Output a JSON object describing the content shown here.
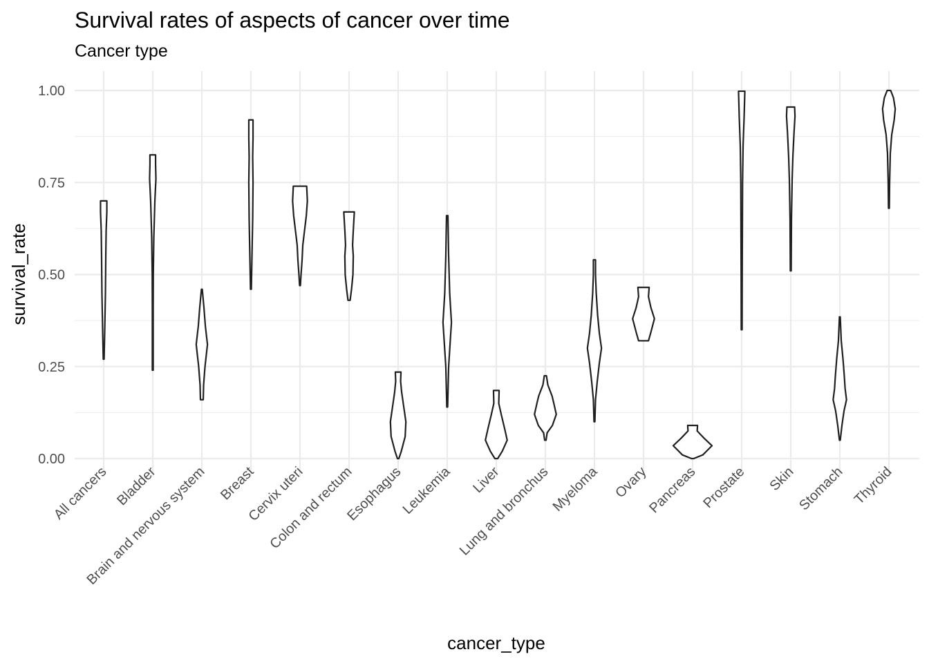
{
  "chart_data": {
    "type": "violin",
    "title": "Survival rates of aspects of cancer over time",
    "subtitle": "Cancer type",
    "xlabel": "cancer_type",
    "ylabel": "survival_rate",
    "ylim": [
      0,
      1
    ],
    "y_ticks": [
      "0.00",
      "0.25",
      "0.50",
      "0.75",
      "1.00"
    ],
    "y_tick_values": [
      0,
      0.25,
      0.5,
      0.75,
      1.0
    ],
    "grid": true,
    "categories": [
      "All cancers",
      "Bladder",
      "Brain and nervous system",
      "Breast",
      "Cervix uteri",
      "Colon and rectum",
      "Esophagus",
      "Leukemia",
      "Liver",
      "Lung and bronchus",
      "Myeloma",
      "Ovary",
      "Pancreas",
      "Prostate",
      "Skin",
      "Stomach",
      "Thyroid"
    ],
    "series": [
      {
        "category": "All cancers",
        "min": 0.27,
        "max": 0.7,
        "density": [
          [
            0.27,
            0.01
          ],
          [
            0.35,
            0.03
          ],
          [
            0.45,
            0.05
          ],
          [
            0.55,
            0.06
          ],
          [
            0.62,
            0.07
          ],
          [
            0.67,
            0.09
          ],
          [
            0.7,
            0.09
          ]
        ]
      },
      {
        "category": "Bladder",
        "min": 0.24,
        "max": 0.825,
        "density": [
          [
            0.24,
            0.01
          ],
          [
            0.4,
            0.01
          ],
          [
            0.5,
            0.015
          ],
          [
            0.6,
            0.03
          ],
          [
            0.7,
            0.06
          ],
          [
            0.76,
            0.09
          ],
          [
            0.8,
            0.08
          ],
          [
            0.825,
            0.08
          ]
        ]
      },
      {
        "category": "Brain and nervous system",
        "min": 0.16,
        "max": 0.46,
        "density": [
          [
            0.16,
            0.04
          ],
          [
            0.2,
            0.05
          ],
          [
            0.25,
            0.09
          ],
          [
            0.31,
            0.16
          ],
          [
            0.36,
            0.1
          ],
          [
            0.41,
            0.06
          ],
          [
            0.46,
            0.01
          ]
        ]
      },
      {
        "category": "Breast",
        "min": 0.46,
        "max": 0.92,
        "density": [
          [
            0.46,
            0.01
          ],
          [
            0.55,
            0.03
          ],
          [
            0.65,
            0.05
          ],
          [
            0.75,
            0.06
          ],
          [
            0.82,
            0.05
          ],
          [
            0.87,
            0.06
          ],
          [
            0.92,
            0.06
          ]
        ]
      },
      {
        "category": "Cervix uteri",
        "min": 0.47,
        "max": 0.74,
        "density": [
          [
            0.47,
            0.01
          ],
          [
            0.5,
            0.03
          ],
          [
            0.54,
            0.06
          ],
          [
            0.58,
            0.08
          ],
          [
            0.62,
            0.13
          ],
          [
            0.66,
            0.18
          ],
          [
            0.7,
            0.21
          ],
          [
            0.74,
            0.19
          ]
        ]
      },
      {
        "category": "Colon and rectum",
        "min": 0.43,
        "max": 0.67,
        "density": [
          [
            0.43,
            0.03
          ],
          [
            0.46,
            0.07
          ],
          [
            0.5,
            0.11
          ],
          [
            0.55,
            0.12
          ],
          [
            0.58,
            0.1
          ],
          [
            0.62,
            0.12
          ],
          [
            0.67,
            0.15
          ]
        ]
      },
      {
        "category": "Esophagus",
        "min": 0.0,
        "max": 0.235,
        "density": [
          [
            0.0,
            0.02
          ],
          [
            0.02,
            0.09
          ],
          [
            0.06,
            0.2
          ],
          [
            0.1,
            0.22
          ],
          [
            0.14,
            0.16
          ],
          [
            0.18,
            0.1
          ],
          [
            0.21,
            0.07
          ],
          [
            0.235,
            0.08
          ]
        ]
      },
      {
        "category": "Leukemia",
        "min": 0.14,
        "max": 0.66,
        "density": [
          [
            0.14,
            0.01
          ],
          [
            0.25,
            0.04
          ],
          [
            0.37,
            0.12
          ],
          [
            0.45,
            0.07
          ],
          [
            0.55,
            0.04
          ],
          [
            0.66,
            0.02
          ]
        ]
      },
      {
        "category": "Liver",
        "min": 0.0,
        "max": 0.185,
        "density": [
          [
            0.0,
            0.04
          ],
          [
            0.02,
            0.17
          ],
          [
            0.05,
            0.31
          ],
          [
            0.08,
            0.24
          ],
          [
            0.12,
            0.14
          ],
          [
            0.15,
            0.07
          ],
          [
            0.185,
            0.08
          ]
        ]
      },
      {
        "category": "Lung and bronchus",
        "min": 0.05,
        "max": 0.225,
        "density": [
          [
            0.05,
            0.02
          ],
          [
            0.07,
            0.05
          ],
          [
            0.09,
            0.2
          ],
          [
            0.12,
            0.31
          ],
          [
            0.15,
            0.24
          ],
          [
            0.17,
            0.19
          ],
          [
            0.2,
            0.07
          ],
          [
            0.225,
            0.03
          ]
        ]
      },
      {
        "category": "Myeloma",
        "min": 0.1,
        "max": 0.54,
        "density": [
          [
            0.1,
            0.01
          ],
          [
            0.16,
            0.03
          ],
          [
            0.21,
            0.08
          ],
          [
            0.26,
            0.14
          ],
          [
            0.3,
            0.2
          ],
          [
            0.34,
            0.14
          ],
          [
            0.39,
            0.09
          ],
          [
            0.45,
            0.05
          ],
          [
            0.5,
            0.03
          ],
          [
            0.54,
            0.03
          ]
        ]
      },
      {
        "category": "Ovary",
        "min": 0.32,
        "max": 0.465,
        "density": [
          [
            0.32,
            0.14
          ],
          [
            0.34,
            0.2
          ],
          [
            0.38,
            0.31
          ],
          [
            0.41,
            0.21
          ],
          [
            0.44,
            0.14
          ],
          [
            0.465,
            0.16
          ]
        ]
      },
      {
        "category": "Pancreas",
        "min": 0.0,
        "max": 0.09,
        "density": [
          [
            0.0,
            0.03
          ],
          [
            0.01,
            0.29
          ],
          [
            0.035,
            0.55
          ],
          [
            0.055,
            0.33
          ],
          [
            0.075,
            0.13
          ],
          [
            0.09,
            0.14
          ]
        ]
      },
      {
        "category": "Prostate",
        "min": 0.35,
        "max": 0.998,
        "density": [
          [
            0.35,
            0.01
          ],
          [
            0.5,
            0.015
          ],
          [
            0.62,
            0.02
          ],
          [
            0.75,
            0.025
          ],
          [
            0.85,
            0.04
          ],
          [
            0.93,
            0.07
          ],
          [
            0.998,
            0.09
          ]
        ]
      },
      {
        "category": "Skin",
        "min": 0.51,
        "max": 0.955,
        "density": [
          [
            0.51,
            0.01
          ],
          [
            0.65,
            0.02
          ],
          [
            0.76,
            0.04
          ],
          [
            0.82,
            0.06
          ],
          [
            0.88,
            0.09
          ],
          [
            0.93,
            0.12
          ],
          [
            0.955,
            0.11
          ]
        ]
      },
      {
        "category": "Stomach",
        "min": 0.05,
        "max": 0.385,
        "density": [
          [
            0.05,
            0.01
          ],
          [
            0.09,
            0.06
          ],
          [
            0.13,
            0.12
          ],
          [
            0.16,
            0.19
          ],
          [
            0.19,
            0.15
          ],
          [
            0.22,
            0.13
          ],
          [
            0.27,
            0.09
          ],
          [
            0.32,
            0.04
          ],
          [
            0.385,
            0.01
          ]
        ]
      },
      {
        "category": "Thyroid",
        "min": 0.68,
        "max": 1.0,
        "density": [
          [
            0.68,
            0.01
          ],
          [
            0.75,
            0.02
          ],
          [
            0.83,
            0.04
          ],
          [
            0.88,
            0.08
          ],
          [
            0.92,
            0.15
          ],
          [
            0.95,
            0.18
          ],
          [
            0.98,
            0.13
          ],
          [
            1.0,
            0.05
          ]
        ]
      }
    ]
  }
}
